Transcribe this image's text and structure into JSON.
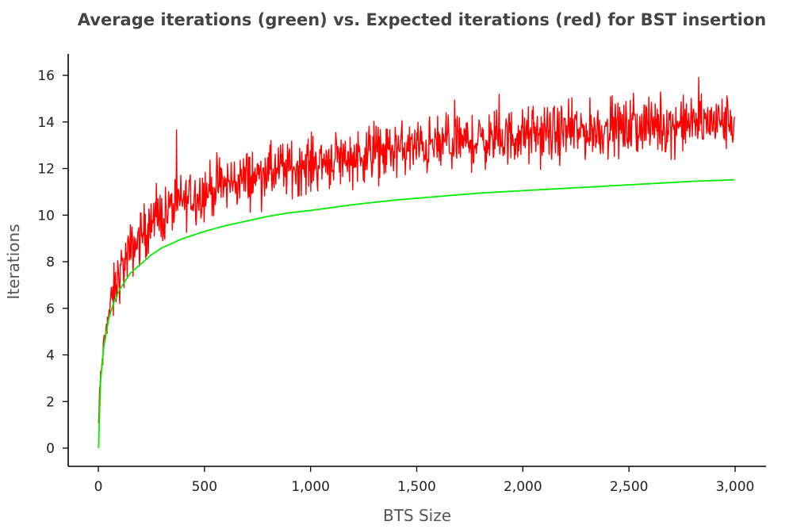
{
  "chart_data": {
    "type": "line",
    "title": "Average iterations (green) vs. Expected iterations (red) for BST insertion",
    "xlabel": "BTS Size",
    "ylabel": "Iterations",
    "xlim": [
      0,
      3000
    ],
    "ylim": [
      0,
      16.5
    ],
    "x_ticks": [
      0,
      500,
      1000,
      1500,
      2000,
      2500,
      3000
    ],
    "x_tick_labels": [
      "0",
      "500",
      "1,000",
      "1,500",
      "2,000",
      "2,500",
      "3,000"
    ],
    "y_ticks": [
      0,
      2,
      4,
      6,
      8,
      10,
      12,
      14,
      16
    ],
    "y_tick_labels": [
      "0",
      "2",
      "4",
      "6",
      "8",
      "10",
      "12",
      "14",
      "16"
    ],
    "grid": false,
    "legend": "none",
    "series": [
      {
        "color": "#ff0000",
        "x": [
          1,
          10,
          25,
          50,
          75,
          100,
          150,
          200,
          250,
          300,
          350,
          400,
          450,
          500,
          550,
          600,
          650,
          700,
          750,
          800,
          850,
          900,
          950,
          1000,
          1050,
          1100,
          1150,
          1200,
          1250,
          1300,
          1350,
          1400,
          1450,
          1500,
          1550,
          1600,
          1650,
          1700,
          1750,
          1800,
          1850,
          1900,
          1950,
          2000,
          2050,
          2100,
          2150,
          2200,
          2250,
          2300,
          2350,
          2400,
          2450,
          2500,
          2550,
          2600,
          2650,
          2700,
          2750,
          2800,
          2850,
          2900,
          2950,
          3000
        ],
        "values": [
          1.0,
          3.0,
          4.3,
          5.8,
          6.7,
          7.5,
          8.4,
          9.1,
          9.6,
          10.0,
          10.3,
          10.6,
          10.8,
          11.0,
          11.2,
          11.3,
          11.5,
          11.6,
          11.7,
          11.8,
          11.9,
          12.0,
          12.1,
          12.2,
          12.3,
          12.4,
          12.45,
          12.5,
          12.6,
          12.65,
          12.7,
          12.8,
          12.85,
          12.9,
          12.95,
          13.0,
          13.05,
          13.1,
          13.15,
          13.2,
          13.25,
          13.3,
          13.35,
          13.4,
          13.4,
          13.45,
          13.5,
          13.55,
          13.6,
          13.6,
          13.65,
          13.7,
          13.7,
          13.75,
          13.8,
          13.8,
          13.85,
          13.85,
          13.9,
          13.95,
          13.95,
          14.0,
          14.0,
          14.0
        ],
        "noise_amplitude": 0.9
      },
      {
        "color": "#00ee00",
        "x": [
          1,
          10,
          25,
          50,
          75,
          100,
          150,
          200,
          250,
          300,
          350,
          400,
          450,
          500,
          600,
          700,
          800,
          900,
          1000,
          1200,
          1400,
          1600,
          1800,
          2000,
          2200,
          2400,
          2600,
          2800,
          3000
        ],
        "values": [
          0.0,
          2.8,
          4.3,
          5.6,
          6.3,
          6.8,
          7.5,
          7.9,
          8.3,
          8.6,
          8.8,
          9.0,
          9.15,
          9.3,
          9.55,
          9.75,
          9.95,
          10.1,
          10.2,
          10.45,
          10.65,
          10.8,
          10.95,
          11.05,
          11.15,
          11.25,
          11.35,
          11.45,
          11.52
        ]
      }
    ]
  }
}
